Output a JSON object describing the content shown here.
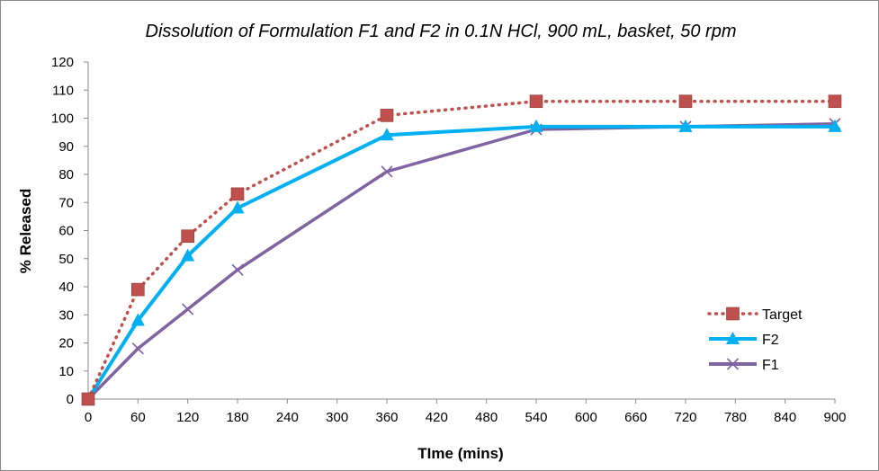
{
  "chart_data": {
    "type": "line",
    "title": "Dissolution of Formulation F1 and F2 in 0.1N HCl, 900 mL, basket, 50 rpm",
    "xlabel": "TIme (mins)",
    "ylabel": "% Released",
    "xlim": [
      0,
      900
    ],
    "ylim": [
      0,
      120
    ],
    "x_ticks": [
      0,
      60,
      120,
      180,
      240,
      300,
      360,
      420,
      480,
      540,
      600,
      660,
      720,
      780,
      840,
      900
    ],
    "y_ticks": [
      0,
      10,
      20,
      30,
      40,
      50,
      60,
      70,
      80,
      90,
      100,
      110,
      120
    ],
    "grid": false,
    "legend_position": "bottom-right",
    "series": [
      {
        "name": "Target",
        "color": "#c0504d",
        "marker": "square",
        "line_style": "dotted",
        "x": [
          0,
          60,
          120,
          180,
          360,
          540,
          720,
          900
        ],
        "y": [
          0,
          39,
          58,
          73,
          101,
          106,
          106,
          106
        ]
      },
      {
        "name": "F2",
        "color": "#00b0f0",
        "marker": "triangle",
        "line_style": "solid",
        "x": [
          0,
          60,
          120,
          180,
          360,
          540,
          720,
          900
        ],
        "y": [
          0,
          28,
          51,
          68,
          94,
          97,
          97,
          97
        ]
      },
      {
        "name": "F1",
        "color": "#8064a2",
        "marker": "x",
        "line_style": "solid",
        "x": [
          0,
          60,
          120,
          180,
          360,
          540,
          720,
          900
        ],
        "y": [
          0,
          18,
          32,
          46,
          81,
          96,
          97,
          98
        ]
      }
    ]
  }
}
